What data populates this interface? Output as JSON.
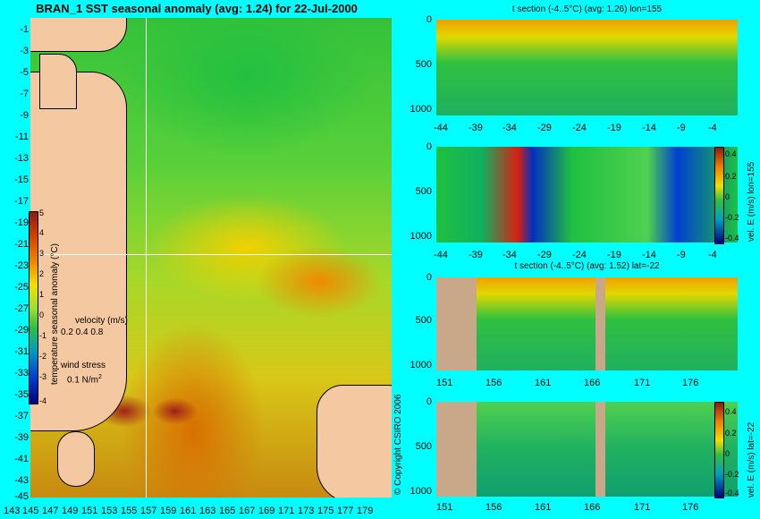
{
  "main": {
    "title": "BRAN_1 SST seasonal anomaly (avg: 1.24) for 22-Jul-2000",
    "lat_ticks": [
      "-1",
      "-3",
      "-5",
      "-7",
      "-9",
      "-11",
      "-13",
      "-15",
      "-17",
      "-19",
      "-21",
      "-23",
      "-25",
      "-27",
      "-29",
      "-31",
      "-33",
      "-35",
      "-37",
      "-39",
      "-41",
      "-43",
      "-45"
    ],
    "lon_ticks": [
      "143",
      "145",
      "147",
      "149",
      "151",
      "153",
      "155",
      "157",
      "159",
      "161",
      "163",
      "165",
      "167",
      "169",
      "171",
      "173",
      "175",
      "177",
      "179"
    ],
    "colorbar_ticks": [
      "5",
      "4",
      "3",
      "2",
      "1",
      "0",
      "-1",
      "-2",
      "-3",
      "-4"
    ],
    "colorbar_label": "temperature seasonal anomaly (°C)",
    "velocity_label": "velocity (m/s)",
    "velocity_scale": "0.2 0.4 0.8",
    "wind_label": "wind stress",
    "wind_scale": "0.1 N/m",
    "wind_exp": "2",
    "copyright": "© Copyright CSIRO 2006"
  },
  "panels": [
    {
      "title": "t section (-4..5°C) (avg: 1.26) lon=155",
      "y_ticks": [
        "0",
        "500",
        "1000"
      ],
      "x_ticks": [
        "-44",
        "-39",
        "-34",
        "-29",
        "-24",
        "-19",
        "-14",
        "-9",
        "-4"
      ]
    },
    {
      "title": "",
      "y_ticks": [
        "0",
        "500",
        "1000"
      ],
      "x_ticks": [
        "-44",
        "-39",
        "-34",
        "-29",
        "-24",
        "-19",
        "-14",
        "-9",
        "-4"
      ],
      "colorbar_ticks": [
        "0.4",
        "0.2",
        "0",
        "-0.2",
        "-0.4"
      ],
      "colorbar_label": "vel. E (m/s) lon=155"
    },
    {
      "title": "t section (-4..5°C) (avg: 1.52) lat=-22",
      "y_ticks": [
        "0",
        "500",
        "1000"
      ],
      "x_ticks": [
        "151",
        "156",
        "161",
        "166",
        "171",
        "176"
      ]
    },
    {
      "title": "",
      "y_ticks": [
        "0",
        "500",
        "1000"
      ],
      "x_ticks": [
        "151",
        "156",
        "161",
        "166",
        "171",
        "176"
      ],
      "colorbar_ticks": [
        "0.4",
        "0.2",
        "0",
        "-0.2",
        "-0.4"
      ],
      "colorbar_label": "vel. E (m/s) lat=-22"
    }
  ]
}
